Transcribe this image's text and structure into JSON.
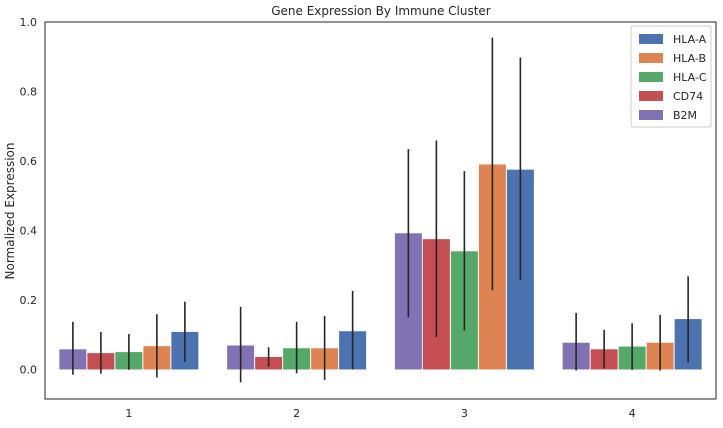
{
  "chart_data": {
    "type": "bar",
    "title": "Gene Expression By Immune Cluster",
    "xlabel": "",
    "ylabel": "Normalized Expression",
    "categories": [
      "1",
      "2",
      "3",
      "4"
    ],
    "ylim": [
      -0.085,
      1.0
    ],
    "yticks": [
      "0.0",
      "0.2",
      "0.4",
      "0.6",
      "0.8",
      "1.0"
    ],
    "grid": false,
    "legend_position": "top-right",
    "series": [
      {
        "name": "B2M",
        "color": "#8172b3",
        "values": [
          0.058,
          0.069,
          0.392,
          0.077
        ],
        "err_low": [
          -0.015,
          -0.037,
          0.15,
          -0.003
        ],
        "err_high": [
          0.137,
          0.18,
          0.634,
          0.163
        ]
      },
      {
        "name": "CD74",
        "color": "#c44e52",
        "values": [
          0.047,
          0.036,
          0.375,
          0.058
        ],
        "err_low": [
          -0.012,
          0.008,
          0.093,
          0.003
        ],
        "err_high": [
          0.108,
          0.064,
          0.659,
          0.114
        ]
      },
      {
        "name": "HLA-C",
        "color": "#55a868",
        "values": [
          0.05,
          0.061,
          0.34,
          0.066
        ],
        "err_low": [
          -0.001,
          -0.011,
          0.112,
          -0.001
        ],
        "err_high": [
          0.102,
          0.137,
          0.571,
          0.133
        ]
      },
      {
        "name": "HLA-B",
        "color": "#dd8452",
        "values": [
          0.067,
          0.061,
          0.59,
          0.077
        ],
        "err_low": [
          -0.023,
          -0.03,
          0.228,
          -0.003
        ],
        "err_high": [
          0.159,
          0.154,
          0.955,
          0.157
        ]
      },
      {
        "name": "HLA-A",
        "color": "#4c72b0",
        "values": [
          0.108,
          0.11,
          0.575,
          0.145
        ],
        "err_low": [
          0.022,
          0.0,
          0.257,
          0.02
        ],
        "err_high": [
          0.195,
          0.226,
          0.898,
          0.268
        ]
      }
    ],
    "legend_order": [
      "HLA-A",
      "HLA-B",
      "HLA-C",
      "CD74",
      "B2M"
    ]
  }
}
